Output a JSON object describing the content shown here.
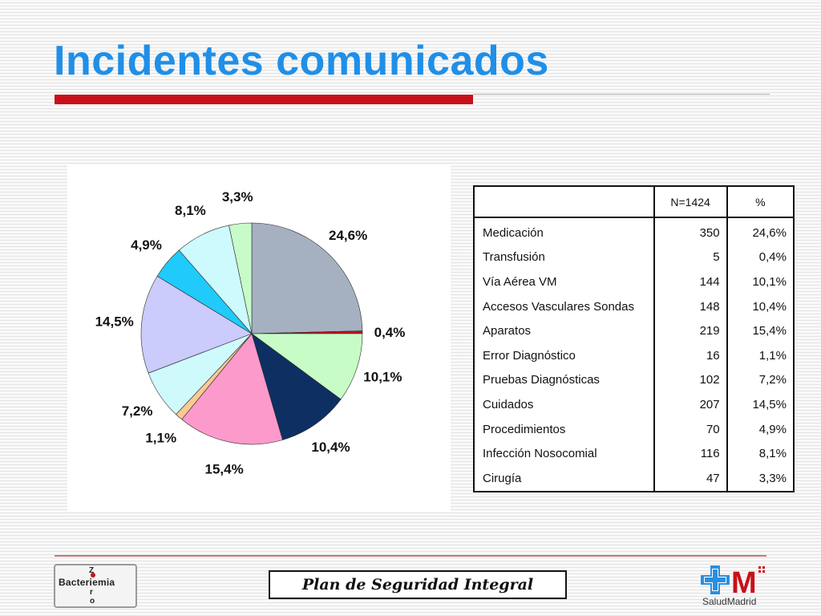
{
  "header": {
    "title": "Incidentes comunicados"
  },
  "footer": {
    "center_label": "Plan de Seguridad Integral",
    "logo_left_text": "Bacteriemia",
    "logo_left_vertical": [
      "Z",
      "e",
      "r",
      "o"
    ],
    "logo_right_text": "SaludMadrid",
    "logo_right_mark": "M"
  },
  "colors": {
    "title": "#1f8fe8",
    "accent_bar": "#c8101a"
  },
  "chart_data": {
    "type": "pie",
    "start": "12 o'clock",
    "direction": "clockwise",
    "slices": [
      {
        "label": "Medicación",
        "value": 24.6,
        "display": "24,6%",
        "color": "#a5b0c1"
      },
      {
        "label": "Transfusión",
        "value": 0.4,
        "display": "0,4%",
        "color": "#c8101a"
      },
      {
        "label": "Vía Aérea VM",
        "value": 10.1,
        "display": "10,1%",
        "color": "#c8fcc6"
      },
      {
        "label": "Accesos Vasculares Sondas",
        "value": 10.4,
        "display": "10,4%",
        "color": "#0e2f62"
      },
      {
        "label": "Aparatos",
        "value": 15.4,
        "display": "15,4%",
        "color": "#fb9acb"
      },
      {
        "label": "Error Diagnóstico",
        "value": 1.1,
        "display": "1,1%",
        "color": "#fcc993"
      },
      {
        "label": "Pruebas Diagnósticas",
        "value": 7.2,
        "display": "7,2%",
        "color": "#cffafc"
      },
      {
        "label": "Cuidados",
        "value": 14.5,
        "display": "14,5%",
        "color": "#cbcbfc"
      },
      {
        "label": "Procedimientos",
        "value": 4.9,
        "display": "4,9%",
        "color": "#20cafb"
      },
      {
        "label": "Infección Nosocomial",
        "value": 8.1,
        "display": "8,1%",
        "color": "#cdfafd"
      },
      {
        "label": "Cirugía",
        "value": 3.3,
        "display": "3,3%",
        "color": "#c7fcc9"
      }
    ]
  },
  "table": {
    "headers": [
      "",
      "N=1424",
      "%"
    ],
    "rows": [
      [
        "Medicación",
        "350",
        "24,6%"
      ],
      [
        "Transfusión",
        "5",
        "0,4%"
      ],
      [
        "Vía Aérea VM",
        "144",
        "10,1%"
      ],
      [
        "Accesos Vasculares Sondas",
        "148",
        "10,4%"
      ],
      [
        "Aparatos",
        "219",
        "15,4%"
      ],
      [
        "Error Diagnóstico",
        "16",
        "1,1%"
      ],
      [
        "Pruebas Diagnósticas",
        "102",
        "7,2%"
      ],
      [
        "Cuidados",
        "207",
        "14,5%"
      ],
      [
        "Procedimientos",
        "70",
        "4,9%"
      ],
      [
        "Infección Nosocomial",
        "116",
        "8,1%"
      ],
      [
        "Cirugía",
        "47",
        "3,3%"
      ]
    ]
  }
}
